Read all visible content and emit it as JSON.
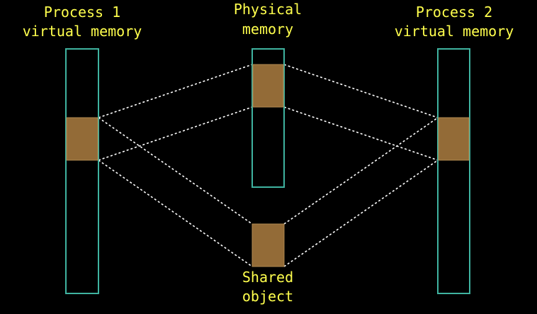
{
  "labels": {
    "process1_line1": "Process 1",
    "process1_line2": "virtual memory",
    "physical_line1": "Physical",
    "physical_line2": "memory",
    "process2_line1": "Process 2",
    "process2_line2": "virtual memory",
    "shared_line1": "Shared",
    "shared_line2": "object"
  },
  "colors": {
    "background": "#000000",
    "label_text": "#ffff4d",
    "column_border": "#3fb3a0",
    "region_fill": "#936b37",
    "region_border": "#b08a50",
    "mapping_line": "#ffffff"
  }
}
